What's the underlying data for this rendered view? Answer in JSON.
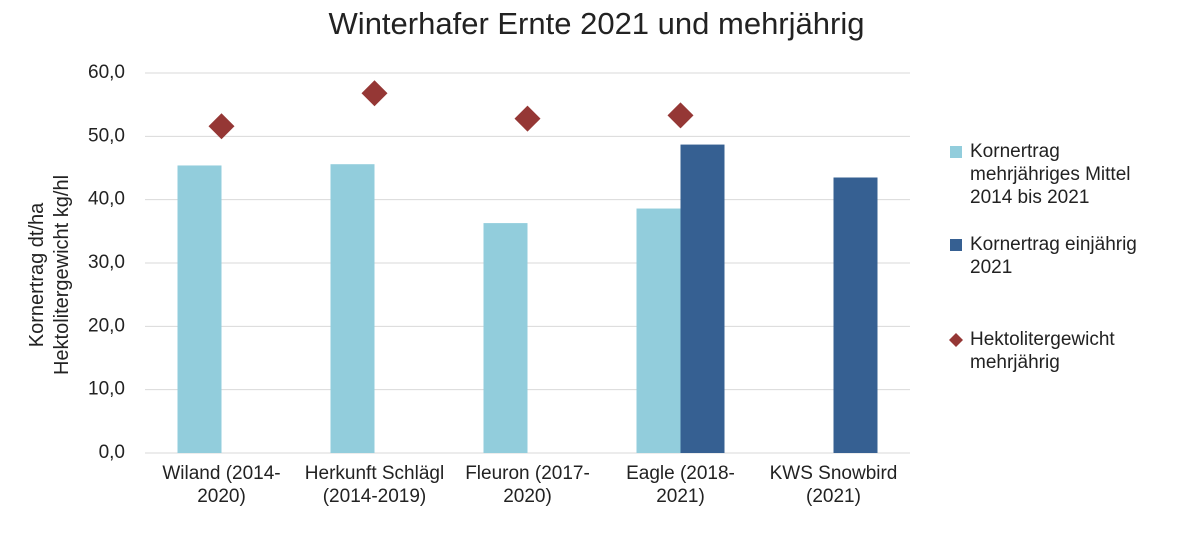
{
  "chart_data": {
    "type": "bar",
    "title": "Winterhafer Ernte 2021 und mehrjährig",
    "y_label": "Kornertrag dt/ha Hektolitergewicht kg/hl",
    "categories": [
      "Wiland (2014-2020)",
      "Herkunft Schlägl (2014-2019)",
      "Fleuron (2017-2020)",
      "Eagle (2018-2021)",
      "KWS Snowbird (2021)"
    ],
    "series": [
      {
        "name": "Kornertrag mehrjähriges Mittel 2014 bis 2021",
        "type": "bar",
        "color": "#92cddc",
        "values": [
          45.4,
          45.6,
          36.3,
          38.6,
          null
        ]
      },
      {
        "name": "Kornertrag einjährig 2021",
        "type": "bar",
        "color": "#366092",
        "values": [
          null,
          null,
          null,
          48.7,
          43.5
        ]
      },
      {
        "name": "Hektolitergewicht mehrjährig",
        "type": "scatter",
        "color": "#953735",
        "values": [
          51.6,
          56.8,
          52.8,
          53.3,
          null
        ]
      }
    ],
    "ylim": [
      0,
      60
    ],
    "yticks": [
      {
        "value": 0,
        "label": "0,0"
      },
      {
        "value": 10,
        "label": "10,0"
      },
      {
        "value": 20,
        "label": "20,0"
      },
      {
        "value": 30,
        "label": "30,0"
      },
      {
        "value": 40,
        "label": "40,0"
      },
      {
        "value": 50,
        "label": "50,0"
      },
      {
        "value": 60,
        "label": "60,0"
      }
    ],
    "grid": true,
    "legend": "right"
  }
}
